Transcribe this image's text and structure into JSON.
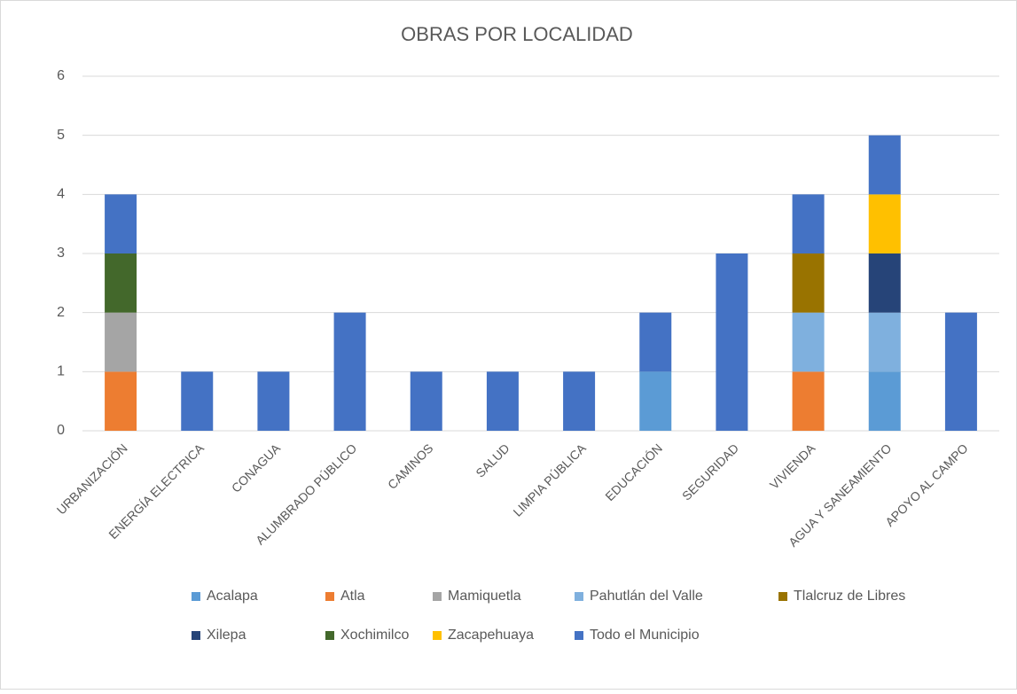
{
  "chart_data": {
    "type": "stacked_bar",
    "title": "OBRAS POR LOCALIDAD",
    "categories": [
      "URBANIZACIÓN",
      "ENERGÍA ELECTRICA",
      "CONAGUA",
      "ALUMBRADO PÚBLICO",
      "CAMINOS",
      "SALUD",
      "LIMPIA PÚBLICA",
      "EDUCACIÓN",
      "SEGURIDAD",
      "VIVIENDA",
      "AGUA Y SANEAMIENTO",
      "APOYO AL CAMPO"
    ],
    "series": [
      {
        "name": "Acalapa",
        "color": "#5b9bd5",
        "values": [
          0,
          0,
          0,
          0,
          0,
          0,
          0,
          1,
          0,
          0,
          1,
          0
        ]
      },
      {
        "name": "Atla",
        "color": "#ed7d31",
        "values": [
          1,
          0,
          0,
          0,
          0,
          0,
          0,
          0,
          0,
          1,
          0,
          0
        ]
      },
      {
        "name": "Mamiquetla",
        "color": "#a5a5a5",
        "values": [
          1,
          0,
          0,
          0,
          0,
          0,
          0,
          0,
          0,
          0,
          0,
          0
        ]
      },
      {
        "name": "Pahutlán del Valle",
        "color": "#7fb0de",
        "values": [
          0,
          0,
          0,
          0,
          0,
          0,
          0,
          0,
          0,
          1,
          1,
          0
        ]
      },
      {
        "name": "Tlalcruz de Libres",
        "color": "#997300",
        "values": [
          0,
          0,
          0,
          0,
          0,
          0,
          0,
          0,
          0,
          1,
          0,
          0
        ]
      },
      {
        "name": "Xilepa",
        "color": "#264478",
        "values": [
          0,
          0,
          0,
          0,
          0,
          0,
          0,
          0,
          0,
          0,
          1,
          0
        ]
      },
      {
        "name": "Xochimilco",
        "color": "#43682b",
        "values": [
          1,
          0,
          0,
          0,
          0,
          0,
          0,
          0,
          0,
          0,
          0,
          0
        ]
      },
      {
        "name": "Zacapehuaya",
        "color": "#ffc000",
        "values": [
          0,
          0,
          0,
          0,
          0,
          0,
          0,
          0,
          0,
          0,
          1,
          0
        ]
      },
      {
        "name": "Todo el Municipio",
        "color": "#4472c4",
        "values": [
          1,
          1,
          1,
          2,
          1,
          1,
          1,
          1,
          3,
          1,
          1,
          2
        ]
      }
    ],
    "ylim": [
      0,
      6
    ],
    "yticks": [
      0,
      1,
      2,
      3,
      4,
      5,
      6
    ],
    "grid": true,
    "legend": "bottom"
  }
}
